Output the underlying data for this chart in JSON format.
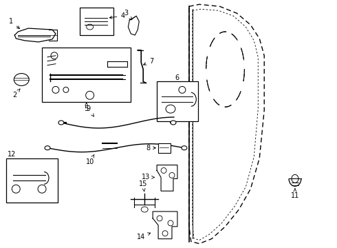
{
  "title": "",
  "bg_color": "#ffffff",
  "line_color": "#000000",
  "fig_width": 4.9,
  "fig_height": 3.6,
  "dpi": 100
}
